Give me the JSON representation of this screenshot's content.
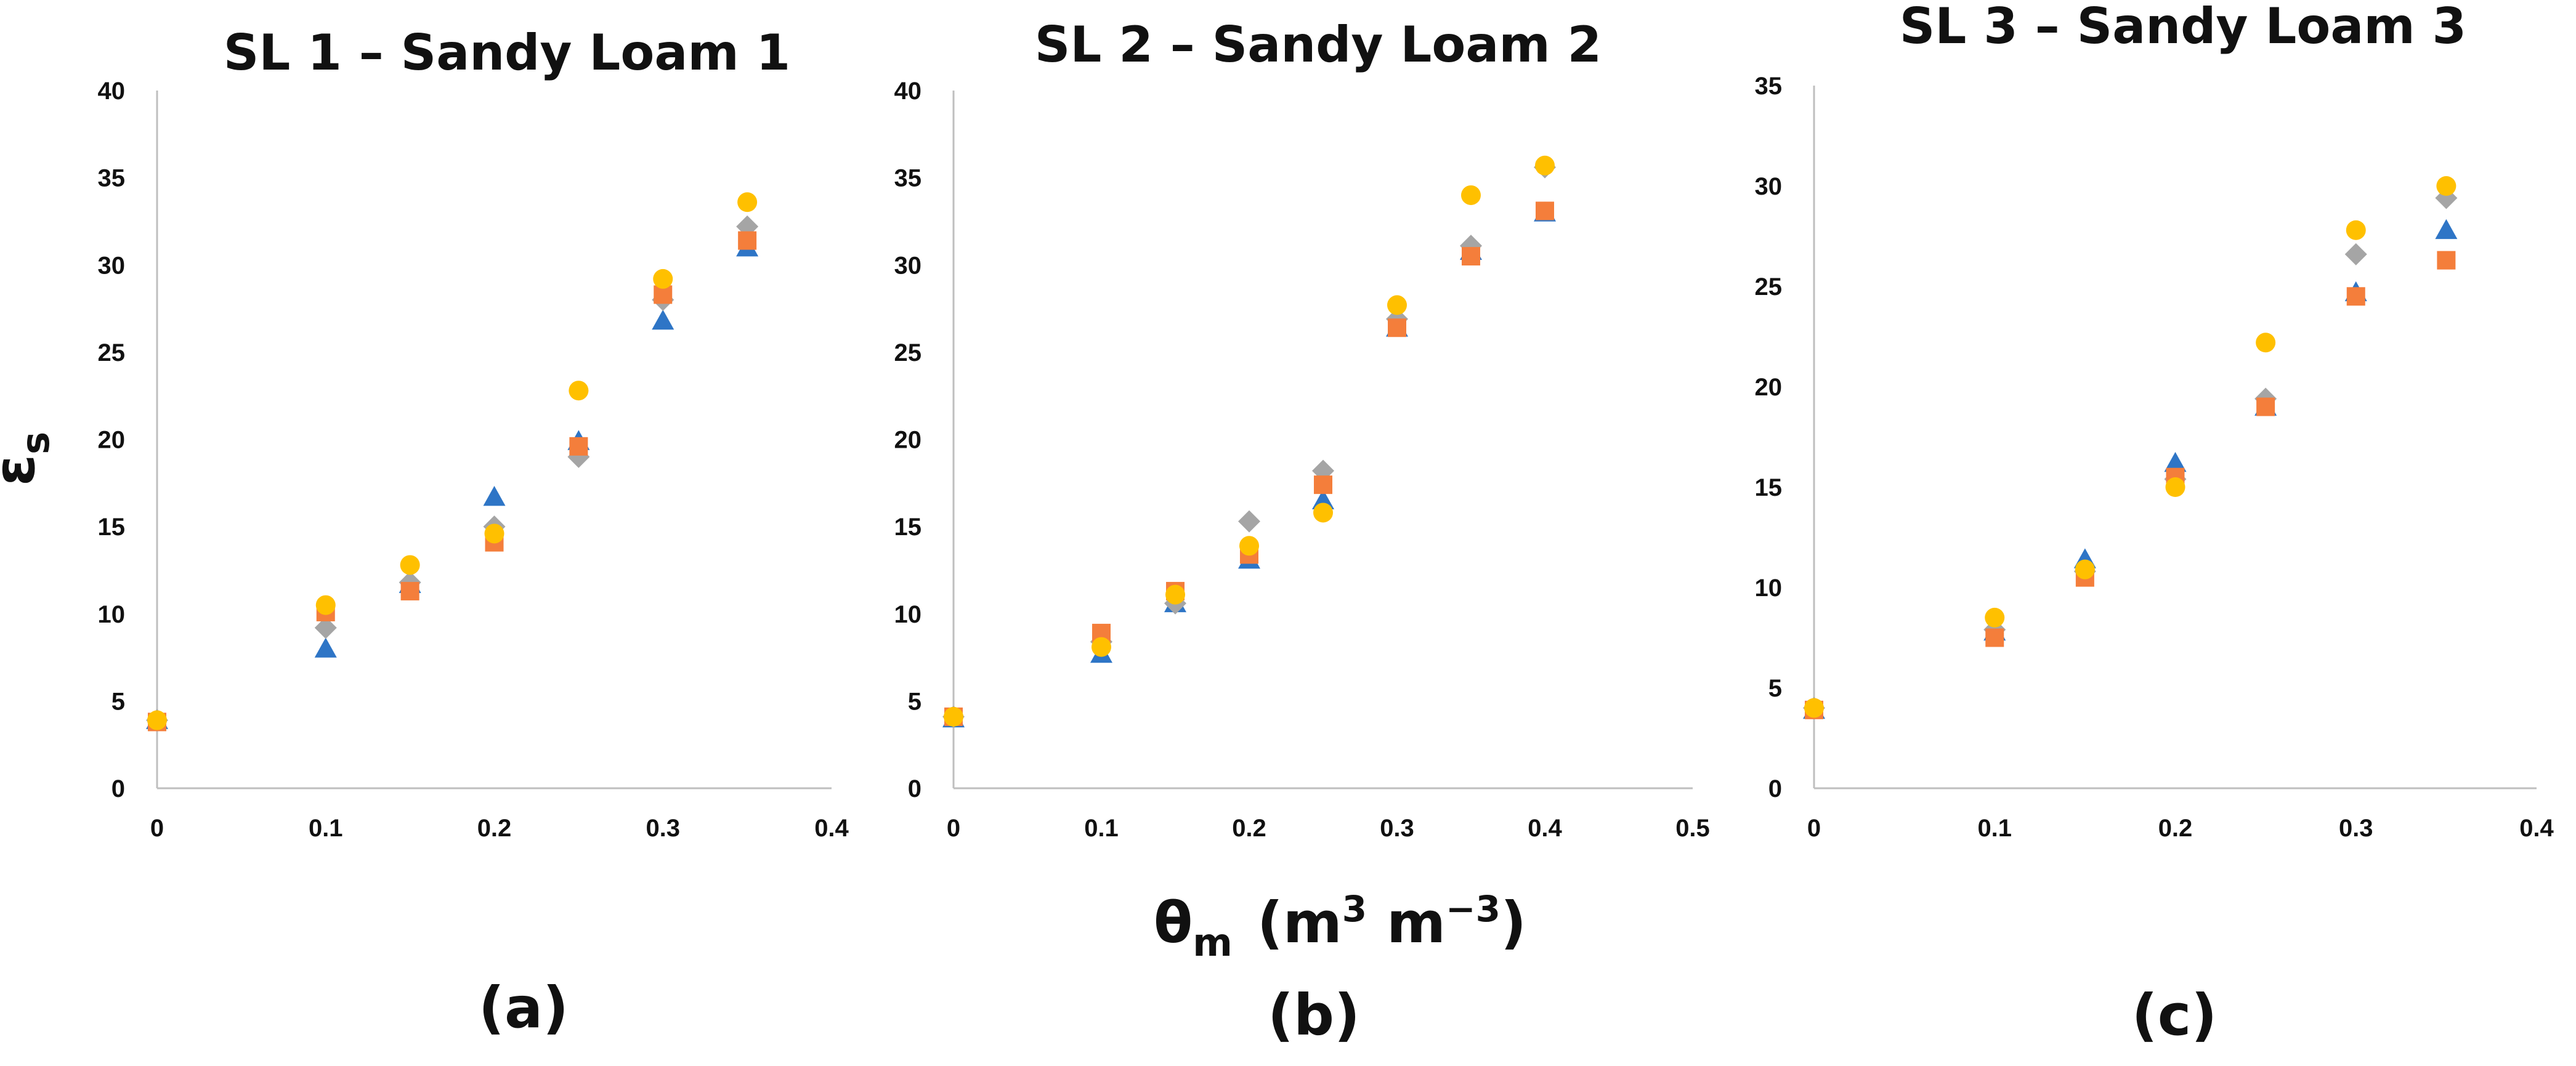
{
  "figure": {
    "y_axis_title": "ε",
    "y_axis_title_sub": "s",
    "x_axis_title_theta": "θ",
    "x_axis_title_sub": "m",
    "x_axis_title_unit_open": "(m",
    "x_axis_title_unit_sup1": "3",
    "x_axis_title_unit_mid": " m",
    "x_axis_title_unit_sup2": "−3",
    "x_axis_title_unit_close": ")"
  },
  "colors": {
    "series_triangle": "#2E75C6",
    "series_square": "#F47E3B",
    "series_diamond": "#A5A5A5",
    "series_circle": "#FFC000",
    "axis": "#BFBFBF"
  },
  "chart_data": [
    {
      "type": "scatter",
      "title": "SL 1 – Sandy Loam 1",
      "panel_label": "(a)",
      "xlim": [
        0,
        0.4
      ],
      "ylim": [
        0,
        40
      ],
      "x_ticks": [
        "0",
        "0.1",
        "0.2",
        "0.3",
        "0.4"
      ],
      "y_ticks": [
        "0",
        "5",
        "10",
        "15",
        "20",
        "25",
        "30",
        "35",
        "40"
      ],
      "series": [
        {
          "marker": "triangle",
          "color": "#2E75C6",
          "points": [
            [
              0,
              3.9
            ],
            [
              0.1,
              8.0
            ],
            [
              0.15,
              11.7
            ],
            [
              0.2,
              16.7
            ],
            [
              0.25,
              19.9
            ],
            [
              0.3,
              26.8
            ],
            [
              0.35,
              31.0
            ]
          ]
        },
        {
          "marker": "diamond",
          "color": "#A5A5A5",
          "points": [
            [
              0,
              3.9
            ],
            [
              0.1,
              9.2
            ],
            [
              0.15,
              11.8
            ],
            [
              0.2,
              15.0
            ],
            [
              0.25,
              19.0
            ],
            [
              0.3,
              28.0
            ],
            [
              0.35,
              32.2
            ]
          ]
        },
        {
          "marker": "square",
          "color": "#F47E3B",
          "points": [
            [
              0,
              3.8
            ],
            [
              0.1,
              10.1
            ],
            [
              0.15,
              11.3
            ],
            [
              0.2,
              14.1
            ],
            [
              0.25,
              19.6
            ],
            [
              0.3,
              28.3
            ],
            [
              0.35,
              31.4
            ]
          ]
        },
        {
          "marker": "circle",
          "color": "#FFC000",
          "points": [
            [
              0,
              3.9
            ],
            [
              0.1,
              10.5
            ],
            [
              0.15,
              12.8
            ],
            [
              0.2,
              14.6
            ],
            [
              0.25,
              22.8
            ],
            [
              0.3,
              29.2
            ],
            [
              0.35,
              33.6
            ]
          ]
        }
      ]
    },
    {
      "type": "scatter",
      "title": "SL 2 – Sandy Loam 2",
      "panel_label": "(b)",
      "xlim": [
        0,
        0.5
      ],
      "ylim": [
        0,
        40
      ],
      "x_ticks": [
        "0",
        "0.1",
        "0.2",
        "0.3",
        "0.4",
        "0.5"
      ],
      "y_ticks": [
        "0",
        "5",
        "10",
        "15",
        "20",
        "25",
        "30",
        "35",
        "40"
      ],
      "series": [
        {
          "marker": "triangle",
          "color": "#2E75C6",
          "points": [
            [
              0,
              4.0
            ],
            [
              0.1,
              7.7
            ],
            [
              0.15,
              10.6
            ],
            [
              0.2,
              13.1
            ],
            [
              0.25,
              16.5
            ],
            [
              0.3,
              26.4
            ],
            [
              0.35,
              30.8
            ],
            [
              0.4,
              33.0
            ]
          ]
        },
        {
          "marker": "diamond",
          "color": "#A5A5A5",
          "points": [
            [
              0,
              4.1
            ],
            [
              0.1,
              8.4
            ],
            [
              0.15,
              10.6
            ],
            [
              0.2,
              15.3
            ],
            [
              0.25,
              18.2
            ],
            [
              0.3,
              26.9
            ],
            [
              0.35,
              31.1
            ],
            [
              0.4,
              35.6
            ]
          ]
        },
        {
          "marker": "square",
          "color": "#F47E3B",
          "points": [
            [
              0,
              4.1
            ],
            [
              0.1,
              8.9
            ],
            [
              0.15,
              11.3
            ],
            [
              0.2,
              13.4
            ],
            [
              0.25,
              17.4
            ],
            [
              0.3,
              26.4
            ],
            [
              0.35,
              30.5
            ],
            [
              0.4,
              33.1
            ]
          ]
        },
        {
          "marker": "circle",
          "color": "#FFC000",
          "points": [
            [
              0,
              4.1
            ],
            [
              0.1,
              8.1
            ],
            [
              0.15,
              11.1
            ],
            [
              0.2,
              13.9
            ],
            [
              0.25,
              15.8
            ],
            [
              0.3,
              27.7
            ],
            [
              0.35,
              34.0
            ],
            [
              0.4,
              35.7
            ]
          ]
        }
      ]
    },
    {
      "type": "scatter",
      "title": "SL 3 – Sandy Loam 3",
      "panel_label": "(c)",
      "xlim": [
        0,
        0.4
      ],
      "ylim": [
        0,
        35
      ],
      "x_ticks": [
        "0",
        "0.1",
        "0.2",
        "0.3",
        "0.4"
      ],
      "y_ticks": [
        "0",
        "5",
        "10",
        "15",
        "20",
        "25",
        "30",
        "35"
      ],
      "series": [
        {
          "marker": "triangle",
          "color": "#2E75C6",
          "points": [
            [
              0,
              3.9
            ],
            [
              0.1,
              7.8
            ],
            [
              0.15,
              11.4
            ],
            [
              0.2,
              16.2
            ],
            [
              0.25,
              19.0
            ],
            [
              0.3,
              24.7
            ],
            [
              0.35,
              27.8
            ]
          ]
        },
        {
          "marker": "diamond",
          "color": "#A5A5A5",
          "points": [
            [
              0,
              4.0
            ],
            [
              0.1,
              7.9
            ],
            [
              0.15,
              10.8
            ],
            [
              0.2,
              15.4
            ],
            [
              0.25,
              19.4
            ],
            [
              0.3,
              26.6
            ],
            [
              0.35,
              29.4
            ]
          ]
        },
        {
          "marker": "square",
          "color": "#F47E3B",
          "points": [
            [
              0,
              3.9
            ],
            [
              0.1,
              7.5
            ],
            [
              0.15,
              10.5
            ],
            [
              0.2,
              15.5
            ],
            [
              0.25,
              19.0
            ],
            [
              0.3,
              24.5
            ],
            [
              0.35,
              26.3
            ]
          ]
        },
        {
          "marker": "circle",
          "color": "#FFC000",
          "points": [
            [
              0,
              4.0
            ],
            [
              0.1,
              8.5
            ],
            [
              0.15,
              10.9
            ],
            [
              0.2,
              15.0
            ],
            [
              0.25,
              22.2
            ],
            [
              0.3,
              27.8
            ],
            [
              0.35,
              30.0
            ]
          ]
        }
      ]
    }
  ]
}
